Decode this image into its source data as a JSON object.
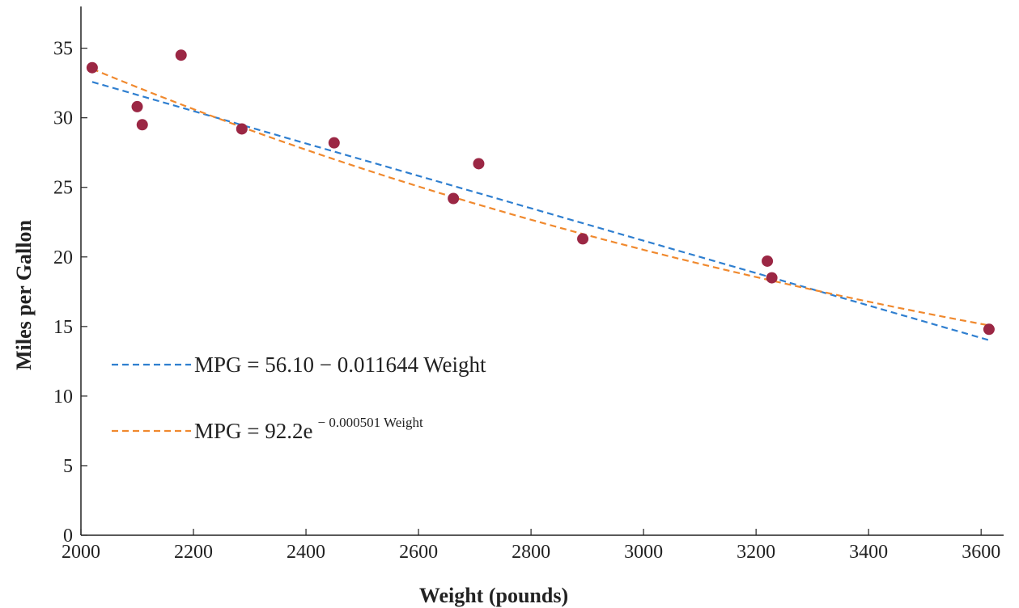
{
  "chart_data": {
    "type": "scatter",
    "xlabel": "Weight (pounds)",
    "ylabel": "Miles per Gallon",
    "xlim": [
      2000,
      3640
    ],
    "ylim": [
      0,
      38
    ],
    "xticks": [
      2000,
      2200,
      2400,
      2600,
      2800,
      3000,
      3200,
      3400,
      3600
    ],
    "yticks": [
      0,
      5,
      10,
      15,
      20,
      25,
      30,
      35
    ],
    "grid": false,
    "legend_position": "center-left",
    "points": {
      "x": [
        2020,
        2100,
        2109,
        2178,
        2286,
        2450,
        2662,
        2707,
        2892,
        3220,
        3228,
        3614
      ],
      "y": [
        33.6,
        30.8,
        29.5,
        34.5,
        29.2,
        28.2,
        24.2,
        26.7,
        21.3,
        19.7,
        18.5,
        14.8
      ],
      "color": "#9b2744"
    },
    "series": [
      {
        "name": "MPG = 56.10 − 0.011644 Weight",
        "kind": "linear",
        "intercept": 56.1,
        "slope": -0.011644,
        "color": "#2f7fd0",
        "dash": true
      },
      {
        "name": "MPG = 92.2e",
        "name_superscript": "− 0.000501 Weight",
        "kind": "exponential",
        "a": 92.2,
        "b": -0.000501,
        "color": "#f0892e",
        "dash": true
      }
    ]
  }
}
